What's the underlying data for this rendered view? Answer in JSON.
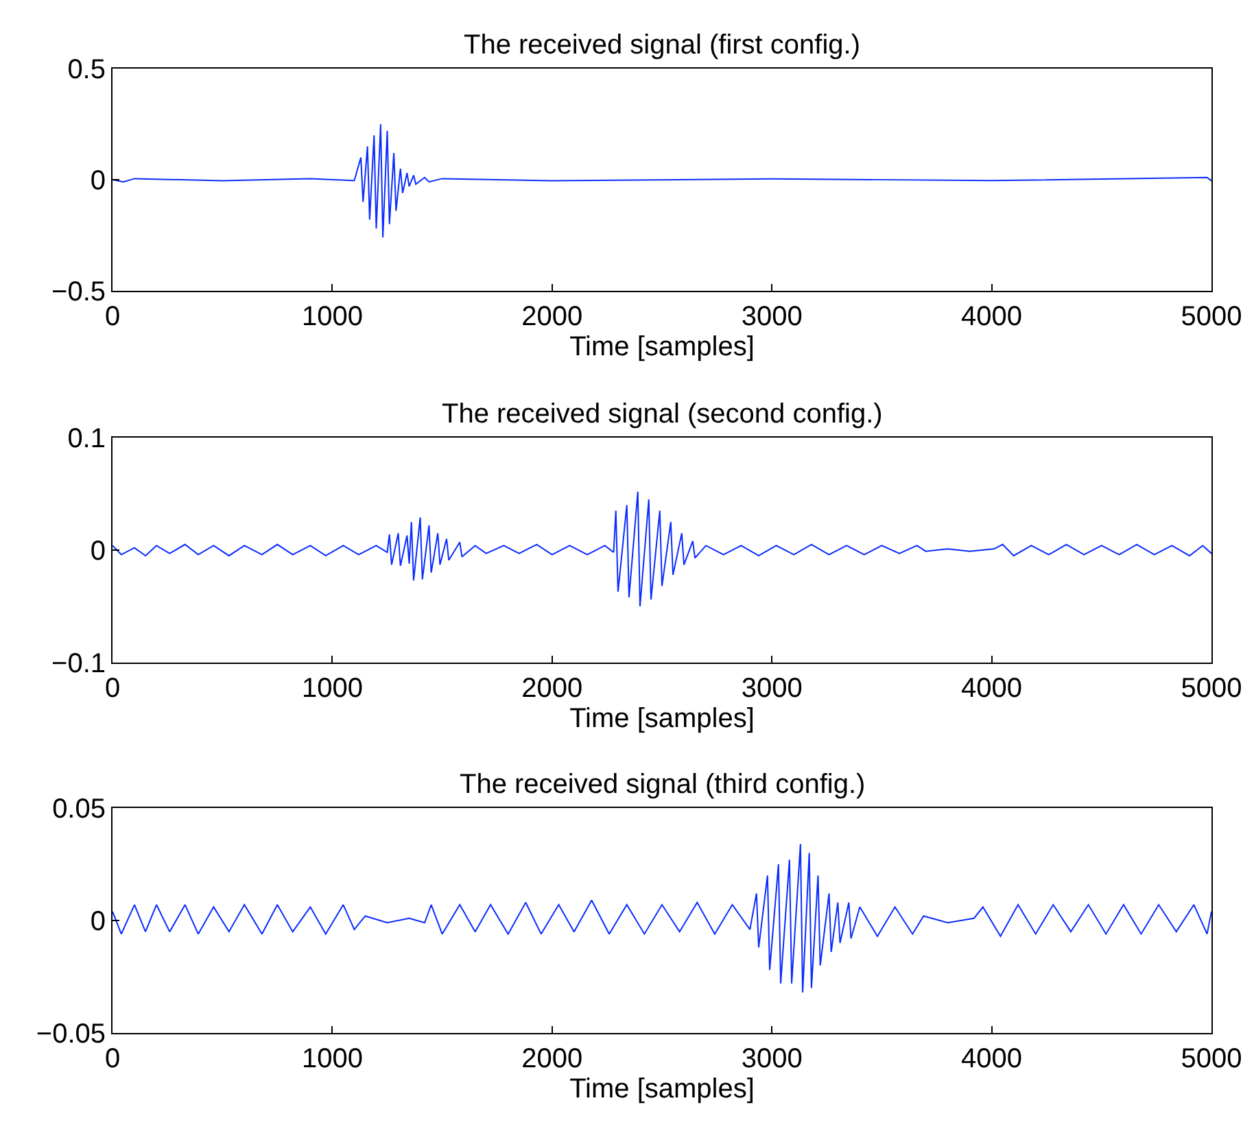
{
  "chart_data": [
    {
      "type": "line",
      "title": "The received signal (first config.)",
      "xlabel": "Time [samples]",
      "xlim": [
        0,
        5000
      ],
      "xticks": [
        0,
        1000,
        2000,
        3000,
        4000,
        5000
      ],
      "ylim": [
        -0.5,
        0.5
      ],
      "yticks": [
        {
          "value": -0.5,
          "label": "−0.5"
        },
        0,
        0.5
      ],
      "series": [
        {
          "color": "#0a2cff",
          "x": [
            0,
            50,
            100,
            500,
            900,
            1100,
            1130,
            1140,
            1160,
            1170,
            1190,
            1200,
            1220,
            1230,
            1250,
            1260,
            1280,
            1290,
            1310,
            1320,
            1340,
            1350,
            1370,
            1380,
            1420,
            1440,
            1500,
            2000,
            3000,
            4000,
            4980,
            5000
          ],
          "values": [
            0,
            -0.01,
            0.005,
            -0.005,
            0.005,
            -0.004,
            0.1,
            -0.1,
            0.15,
            -0.18,
            0.2,
            -0.22,
            0.25,
            -0.26,
            0.22,
            -0.2,
            0.12,
            -0.14,
            0.05,
            -0.06,
            0.03,
            -0.03,
            0.02,
            -0.02,
            0.01,
            -0.01,
            0.005,
            -0.005,
            0.004,
            -0.004,
            0.01,
            -0.005
          ]
        }
      ]
    },
    {
      "type": "line",
      "title": "The received signal (second config.)",
      "xlabel": "Time [samples]",
      "xlim": [
        0,
        5000
      ],
      "xticks": [
        0,
        1000,
        2000,
        3000,
        4000,
        5000
      ],
      "ylim": [
        -0.1,
        0.1
      ],
      "yticks": [
        {
          "value": -0.1,
          "label": "−0.1"
        },
        0,
        0.1
      ],
      "series": [
        {
          "color": "#0a2cff",
          "x": [
            0,
            40,
            100,
            150,
            200,
            260,
            330,
            390,
            460,
            530,
            600,
            680,
            750,
            820,
            900,
            970,
            1050,
            1120,
            1200,
            1250,
            1260,
            1270,
            1300,
            1310,
            1340,
            1350,
            1360,
            1370,
            1400,
            1410,
            1440,
            1450,
            1480,
            1490,
            1520,
            1530,
            1580,
            1590,
            1650,
            1700,
            1780,
            1850,
            1930,
            2000,
            2080,
            2160,
            2240,
            2280,
            2290,
            2300,
            2340,
            2350,
            2390,
            2400,
            2440,
            2450,
            2490,
            2500,
            2540,
            2550,
            2590,
            2600,
            2640,
            2650,
            2700,
            2780,
            2860,
            2940,
            3020,
            3100,
            3180,
            3260,
            3340,
            3420,
            3500,
            3580,
            3660,
            3700,
            3800,
            3900,
            4010,
            4050,
            4100,
            4180,
            4260,
            4340,
            4420,
            4500,
            4580,
            4660,
            4740,
            4820,
            4900,
            4960,
            5000
          ],
          "values": [
            0.004,
            -0.004,
            0.002,
            -0.005,
            0.004,
            -0.003,
            0.005,
            -0.004,
            0.004,
            -0.005,
            0.004,
            -0.004,
            0.005,
            -0.004,
            0.004,
            -0.005,
            0.004,
            -0.004,
            0.004,
            -0.002,
            0.014,
            -0.013,
            0.015,
            -0.014,
            0.013,
            -0.012,
            0.025,
            -0.027,
            0.029,
            -0.026,
            0.022,
            -0.02,
            0.015,
            -0.013,
            0.01,
            -0.009,
            0.007,
            -0.006,
            0.004,
            -0.003,
            0.004,
            -0.003,
            0.005,
            -0.004,
            0.004,
            -0.004,
            0.004,
            -0.002,
            0.035,
            -0.037,
            0.04,
            -0.042,
            0.052,
            -0.05,
            0.045,
            -0.044,
            0.035,
            -0.032,
            0.025,
            -0.022,
            0.015,
            -0.013,
            0.008,
            -0.007,
            0.004,
            -0.004,
            0.004,
            -0.005,
            0.004,
            -0.004,
            0.005,
            -0.004,
            0.004,
            -0.004,
            0.004,
            -0.003,
            0.004,
            -0.001,
            0.001,
            -0.001,
            0.001,
            0.005,
            -0.005,
            0.004,
            -0.004,
            0.005,
            -0.004,
            0.004,
            -0.004,
            0.005,
            -0.004,
            0.004,
            -0.005,
            0.004,
            -0.003
          ]
        }
      ]
    },
    {
      "type": "line",
      "title": "The received signal (third config.)",
      "xlabel": "Time [samples]",
      "xlim": [
        0,
        5000
      ],
      "xticks": [
        0,
        1000,
        2000,
        3000,
        4000,
        5000
      ],
      "ylim": [
        -0.05,
        0.05
      ],
      "yticks": [
        {
          "value": -0.05,
          "label": "−0.05"
        },
        0,
        0.05
      ],
      "series": [
        {
          "color": "#0a2cff",
          "x": [
            0,
            40,
            100,
            150,
            200,
            260,
            330,
            390,
            460,
            530,
            600,
            680,
            750,
            820,
            900,
            970,
            1050,
            1100,
            1150,
            1250,
            1350,
            1420,
            1450,
            1500,
            1580,
            1650,
            1720,
            1800,
            1880,
            1950,
            2030,
            2100,
            2180,
            2260,
            2340,
            2420,
            2500,
            2580,
            2660,
            2740,
            2820,
            2900,
            2930,
            2940,
            2980,
            2990,
            3030,
            3040,
            3080,
            3090,
            3130,
            3140,
            3170,
            3180,
            3210,
            3220,
            3260,
            3270,
            3300,
            3310,
            3350,
            3360,
            3400,
            3480,
            3560,
            3640,
            3690,
            3800,
            3920,
            3960,
            4040,
            4120,
            4200,
            4280,
            4360,
            4440,
            4520,
            4600,
            4680,
            4760,
            4840,
            4920,
            4980,
            5000
          ],
          "values": [
            0.004,
            -0.006,
            0.007,
            -0.005,
            0.007,
            -0.005,
            0.007,
            -0.006,
            0.006,
            -0.005,
            0.007,
            -0.006,
            0.007,
            -0.005,
            0.006,
            -0.006,
            0.007,
            -0.004,
            0.002,
            -0.001,
            0.001,
            -0.001,
            0.007,
            -0.006,
            0.007,
            -0.005,
            0.007,
            -0.006,
            0.008,
            -0.006,
            0.007,
            -0.005,
            0.009,
            -0.006,
            0.007,
            -0.006,
            0.007,
            -0.005,
            0.008,
            -0.006,
            0.007,
            -0.004,
            0.012,
            -0.012,
            0.02,
            -0.022,
            0.025,
            -0.028,
            0.027,
            -0.028,
            0.034,
            -0.032,
            0.03,
            -0.03,
            0.02,
            -0.02,
            0.012,
            -0.014,
            0.008,
            -0.01,
            0.008,
            -0.008,
            0.006,
            -0.007,
            0.006,
            -0.006,
            0.002,
            -0.001,
            0.001,
            0.006,
            -0.007,
            0.007,
            -0.006,
            0.007,
            -0.005,
            0.007,
            -0.006,
            0.007,
            -0.006,
            0.007,
            -0.005,
            0.007,
            -0.006,
            0.004
          ]
        }
      ]
    }
  ]
}
